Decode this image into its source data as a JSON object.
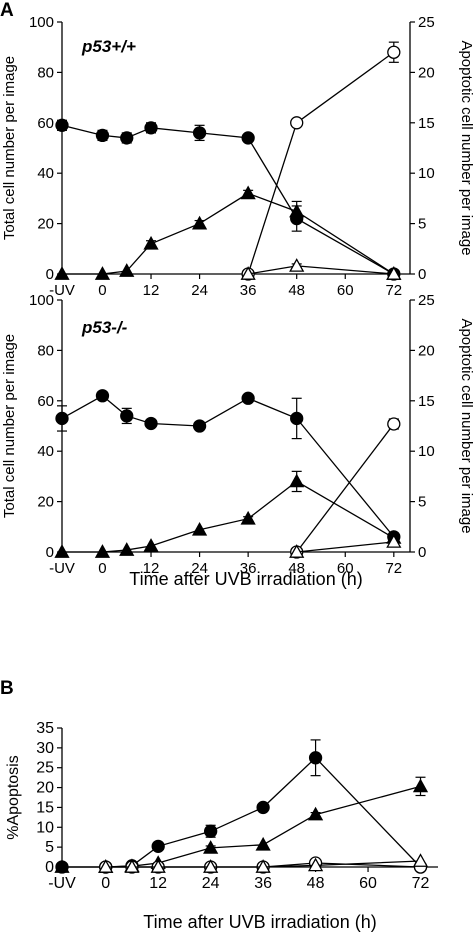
{
  "figure": {
    "panel_a_label": "A",
    "panel_b_label": "B"
  },
  "chart_data": [
    {
      "id": "p53wt",
      "type": "line",
      "panel": "A",
      "title": "p53+/+",
      "xlabel": "",
      "ylabel": "Total cell number per image",
      "y2label": "Apoptotic cell number per image",
      "x_tick_labels": [
        "-UV",
        "0",
        "12",
        "24",
        "36",
        "48",
        "60",
        "72"
      ],
      "x_tick_values": [
        -10,
        0,
        12,
        24,
        36,
        48,
        60,
        72
      ],
      "ylim": [
        0,
        100
      ],
      "y_ticks": [
        0,
        20,
        40,
        60,
        80,
        100
      ],
      "y2lim": [
        0,
        25
      ],
      "y2_ticks": [
        0,
        5,
        10,
        15,
        20,
        25
      ],
      "series": [
        {
          "marker": "filled-circle",
          "axis": "left",
          "x": [
            -10,
            0,
            6,
            12,
            24,
            36,
            48,
            72
          ],
          "y": [
            59,
            55,
            54,
            58,
            56,
            54,
            22,
            0
          ],
          "err": [
            2,
            2,
            2,
            2,
            3,
            1,
            5,
            1
          ]
        },
        {
          "marker": "filled-triangle",
          "axis": "right",
          "x": [
            -10,
            0,
            6,
            12,
            24,
            36,
            48,
            72
          ],
          "y": [
            0,
            0,
            0.3,
            3,
            5,
            8,
            6.2,
            0
          ],
          "err": [
            0,
            0,
            0,
            0.3,
            0.3,
            0.3,
            1,
            0
          ]
        },
        {
          "marker": "open-circle",
          "axis": "right",
          "x": [
            36,
            48,
            72
          ],
          "y": [
            0,
            15,
            22
          ],
          "err": [
            0,
            0,
            1
          ]
        },
        {
          "marker": "open-triangle",
          "axis": "right",
          "x": [
            36,
            48,
            72
          ],
          "y": [
            0,
            0.8,
            0
          ],
          "err": [
            0,
            0.2,
            0
          ]
        }
      ]
    },
    {
      "id": "p53ko",
      "type": "line",
      "panel": "A",
      "title": "p53-/-",
      "xlabel": "Time after UVB irradiation (h)",
      "ylabel": "Total cell number per image",
      "y2label": "Apoptotic cell number per image",
      "x_tick_labels": [
        "-UV",
        "0",
        "12",
        "24",
        "36",
        "48",
        "60",
        "72"
      ],
      "x_tick_values": [
        -10,
        0,
        12,
        24,
        36,
        48,
        60,
        72
      ],
      "ylim": [
        0,
        100
      ],
      "y_ticks": [
        0,
        20,
        40,
        60,
        80,
        100
      ],
      "y2lim": [
        0,
        25
      ],
      "y2_ticks": [
        0,
        5,
        10,
        15,
        20,
        25
      ],
      "series": [
        {
          "marker": "filled-circle",
          "axis": "left",
          "x": [
            -10,
            0,
            6,
            12,
            24,
            36,
            48,
            72
          ],
          "y": [
            53,
            62,
            54,
            51,
            50,
            61,
            53,
            6
          ],
          "err": [
            5,
            1,
            3,
            1,
            1,
            1,
            8,
            1
          ]
        },
        {
          "marker": "filled-triangle",
          "axis": "right",
          "x": [
            -10,
            0,
            6,
            12,
            24,
            36,
            48,
            72
          ],
          "y": [
            0,
            0,
            0.2,
            0.6,
            2.2,
            3.3,
            7,
            1.4
          ],
          "err": [
            0,
            0,
            0,
            0,
            0,
            0.2,
            1,
            0.2
          ]
        },
        {
          "marker": "open-circle",
          "axis": "right",
          "x": [
            48,
            72
          ],
          "y": [
            0,
            12.7
          ],
          "err": [
            0,
            0.5
          ]
        },
        {
          "marker": "open-triangle",
          "axis": "right",
          "x": [
            48,
            72
          ],
          "y": [
            0,
            1
          ],
          "err": [
            0,
            0
          ]
        }
      ]
    },
    {
      "id": "apoptosis",
      "type": "line",
      "panel": "B",
      "title": "",
      "xlabel": "Time after UVB irradiation (h)",
      "ylabel": "%Apoptosis",
      "x_tick_labels": [
        "-UV",
        "0",
        "12",
        "24",
        "36",
        "48",
        "60",
        "72"
      ],
      "x_tick_values": [
        -10,
        0,
        12,
        24,
        36,
        48,
        60,
        72
      ],
      "ylim": [
        0,
        35
      ],
      "y_ticks": [
        0,
        5,
        10,
        15,
        20,
        25,
        30,
        35
      ],
      "series": [
        {
          "marker": "filled-circle",
          "x": [
            -10,
            0,
            6,
            12,
            24,
            36,
            48,
            72
          ],
          "y": [
            0,
            0,
            0.3,
            5.2,
            9,
            15,
            27.5,
            0
          ],
          "err": [
            0,
            0,
            0,
            0.5,
            1.5,
            0.5,
            4.5,
            0
          ]
        },
        {
          "marker": "filled-triangle",
          "x": [
            -10,
            0,
            6,
            12,
            24,
            36,
            48,
            72
          ],
          "y": [
            0,
            0,
            0.2,
            1,
            4.8,
            5.6,
            13.2,
            20.3
          ],
          "err": [
            0,
            0,
            0,
            0,
            0.5,
            0,
            0.5,
            2.3
          ]
        },
        {
          "marker": "open-circle",
          "x": [
            0,
            6,
            12,
            24,
            36,
            48,
            72
          ],
          "y": [
            0,
            0,
            0,
            0,
            0,
            1,
            0
          ],
          "err": [
            0,
            0,
            0,
            0,
            0,
            0,
            0
          ]
        },
        {
          "marker": "open-triangle",
          "x": [
            0,
            6,
            12,
            24,
            36,
            48,
            72
          ],
          "y": [
            0,
            0,
            0,
            0,
            0,
            0.4,
            1.5
          ],
          "err": [
            0,
            0,
            0,
            0,
            0,
            0,
            0
          ]
        }
      ]
    }
  ]
}
